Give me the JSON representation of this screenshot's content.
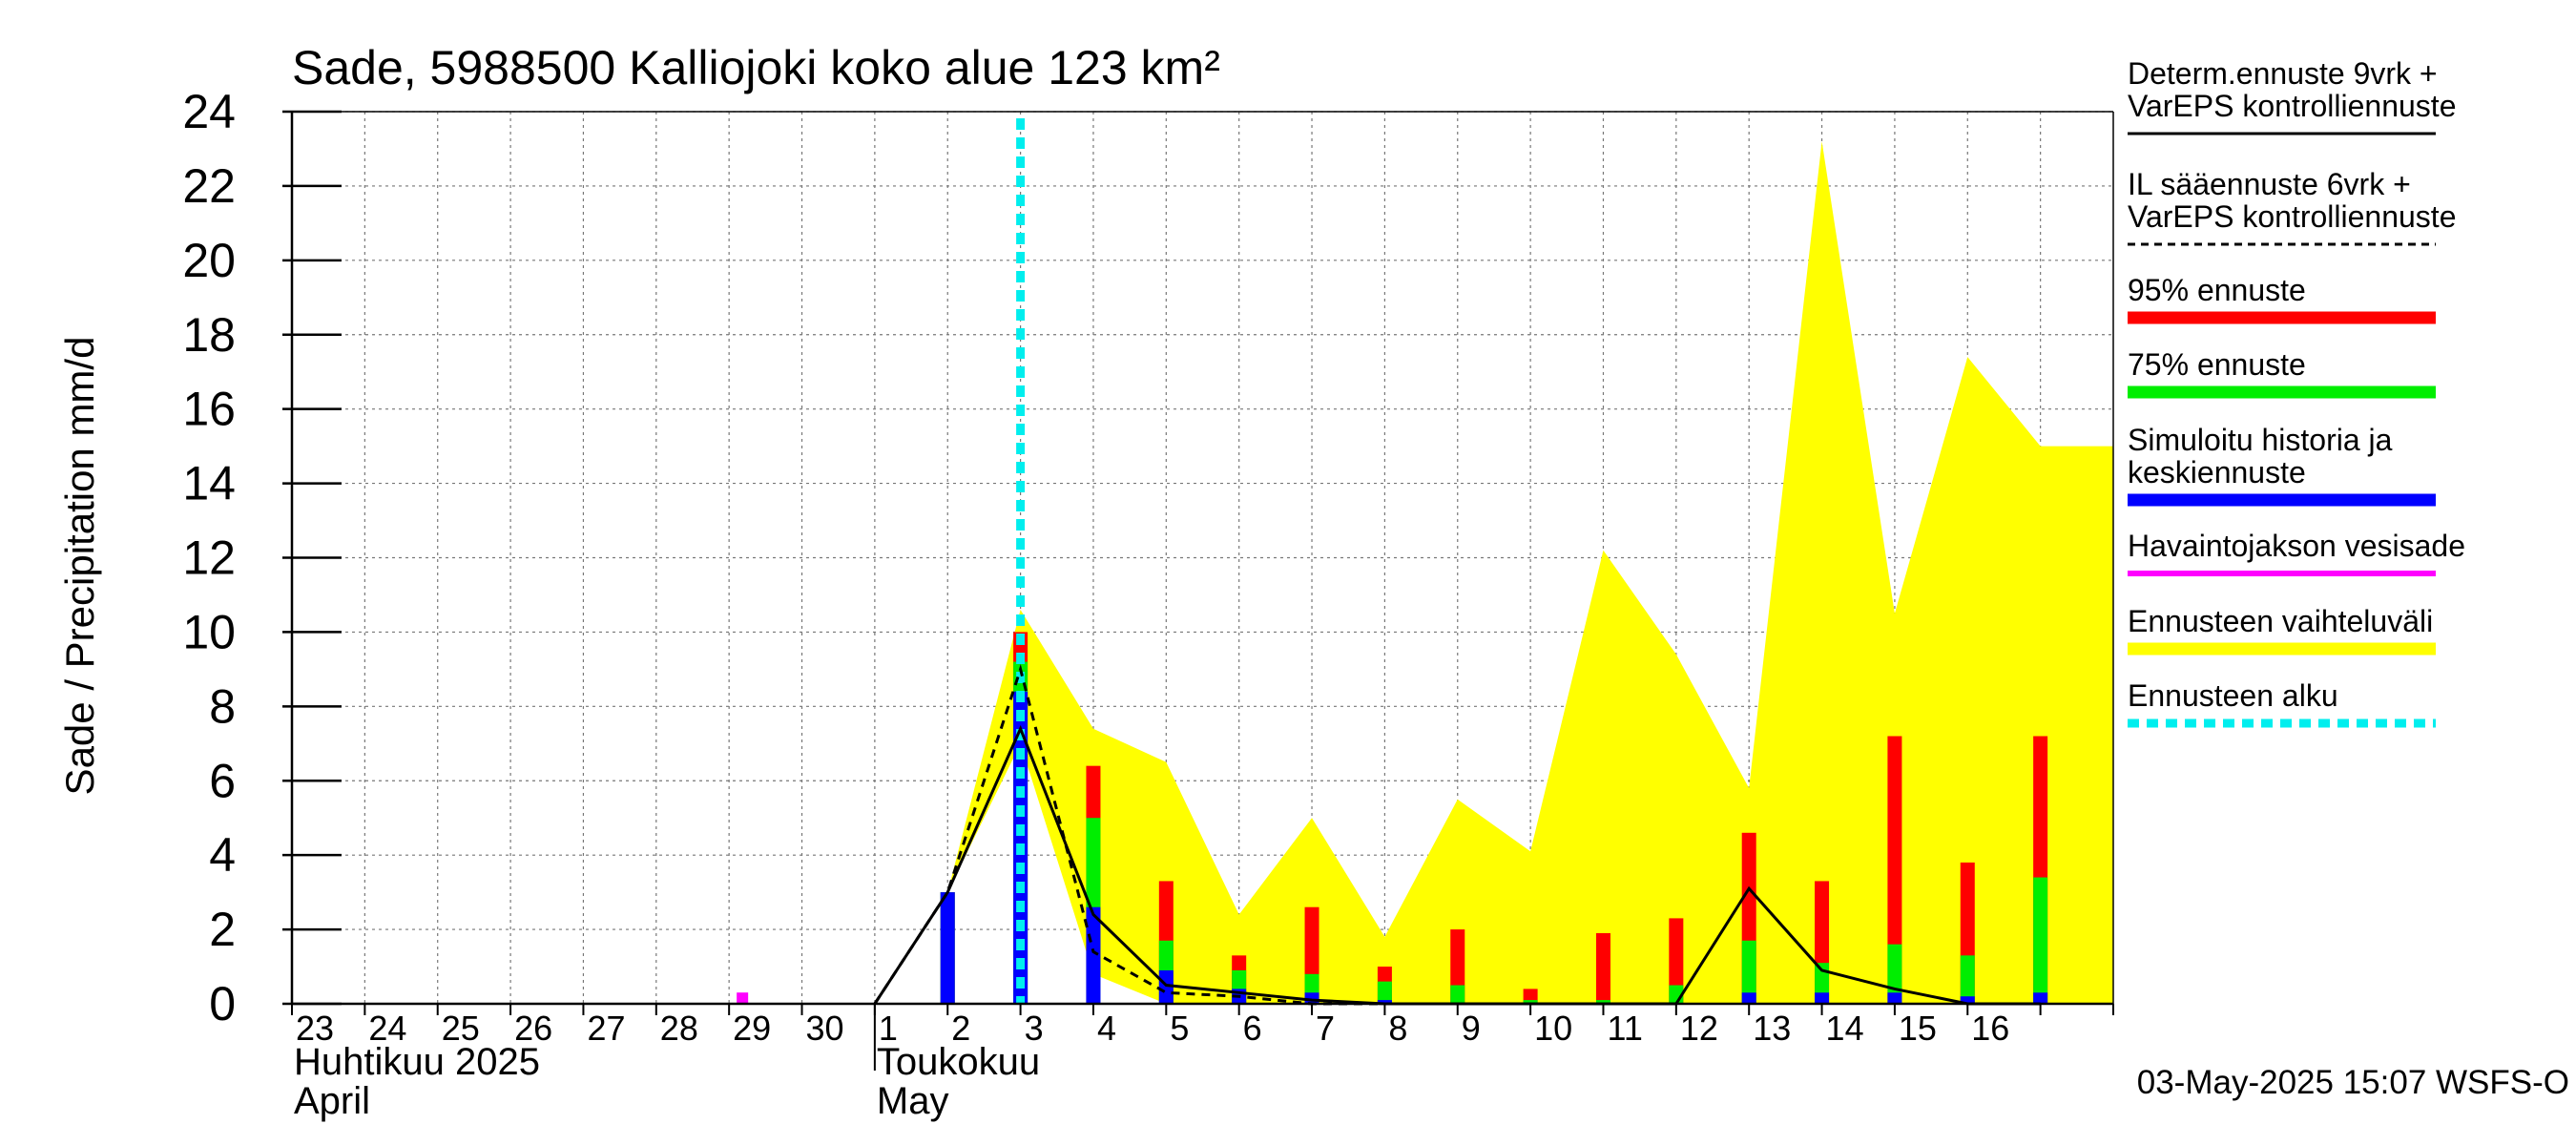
{
  "chart_data": {
    "type": "bar",
    "title": "Sade, 5988500 Kalliojoki koko alue 123 km²",
    "ylabel": "Sade / Precipitation   mm/d",
    "ylim": [
      0,
      24
    ],
    "yticks": [
      0,
      2,
      4,
      6,
      8,
      10,
      12,
      14,
      16,
      18,
      20,
      22,
      24
    ],
    "grid": true,
    "legend_position": "right",
    "x_days": 25,
    "day_labels": [
      "23",
      "24",
      "25",
      "26",
      "27",
      "28",
      "29",
      "30",
      "1",
      "2",
      "3",
      "4",
      "5",
      "6",
      "7",
      "8",
      "9",
      "10",
      "11",
      "12",
      "13",
      "14",
      "15",
      "16"
    ],
    "month_labels": [
      {
        "fi": "Huhtikuu  2025",
        "en": "April",
        "day_index": 0
      },
      {
        "fi": "Toukokuu",
        "en": "May",
        "day_index": 8
      }
    ],
    "forecast_start_day": 10,
    "envelope": {
      "name": "Ennusteen vaihteluväli",
      "x": [
        9,
        10,
        11,
        12,
        13,
        14,
        15,
        16,
        17,
        18,
        19,
        20,
        21,
        22,
        23,
        24,
        25
      ],
      "upper": [
        3.0,
        10.6,
        7.4,
        6.5,
        2.4,
        5.0,
        1.8,
        5.5,
        4.1,
        12.2,
        9.4,
        5.8,
        23.2,
        10.5,
        17.4,
        15.0,
        15.0
      ],
      "lower": [
        3.0,
        7.0,
        0.8,
        0.0,
        0.0,
        0.0,
        0.0,
        0.0,
        0.0,
        0.0,
        0.0,
        0.0,
        0.0,
        0.0,
        0.0,
        0.0,
        0.0
      ]
    },
    "bars": [
      {
        "day": 9,
        "p95": 3.0,
        "p75": 3.0,
        "median": 3.0
      },
      {
        "day": 10,
        "p95": 10.0,
        "p75": 9.2,
        "median": 8.4
      },
      {
        "day": 11,
        "p95": 6.4,
        "p75": 5.0,
        "median": 2.6
      },
      {
        "day": 12,
        "p95": 3.3,
        "p75": 1.7,
        "median": 0.9
      },
      {
        "day": 13,
        "p95": 1.3,
        "p75": 0.9,
        "median": 0.4
      },
      {
        "day": 14,
        "p95": 2.6,
        "p75": 0.8,
        "median": 0.3
      },
      {
        "day": 15,
        "p95": 1.0,
        "p75": 0.6,
        "median": 0.1
      },
      {
        "day": 16,
        "p95": 2.0,
        "p75": 0.5,
        "median": 0.0
      },
      {
        "day": 17,
        "p95": 0.4,
        "p75": 0.1,
        "median": 0.0
      },
      {
        "day": 18,
        "p95": 1.9,
        "p75": 0.1,
        "median": 0.0
      },
      {
        "day": 19,
        "p95": 2.3,
        "p75": 0.5,
        "median": 0.0
      },
      {
        "day": 20,
        "p95": 4.6,
        "p75": 1.7,
        "median": 0.3
      },
      {
        "day": 21,
        "p95": 3.3,
        "p75": 1.1,
        "median": 0.3
      },
      {
        "day": 22,
        "p95": 7.2,
        "p75": 1.6,
        "median": 0.3
      },
      {
        "day": 23,
        "p95": 3.8,
        "p75": 1.3,
        "median": 0.2
      },
      {
        "day": 24,
        "p95": 7.2,
        "p75": 3.4,
        "median": 0.3
      }
    ],
    "observed_bars": [
      {
        "day": 6,
        "value": 0.2
      }
    ],
    "determ_line": {
      "name": "Determ.ennuste 9vrk + VarEPS kontrolliennuste",
      "x": [
        8,
        9,
        10,
        11,
        12,
        13,
        14,
        15,
        16,
        17,
        18,
        19,
        20,
        21,
        22,
        23,
        24
      ],
      "y": [
        0,
        3.0,
        7.4,
        2.4,
        0.5,
        0.3,
        0.1,
        0.0,
        0.0,
        0.0,
        0.0,
        0.0,
        3.1,
        0.9,
        0.4,
        0.0,
        0.0
      ]
    },
    "il_line": {
      "name": "IL sääennuste 6vrk + VarEPS kontrolliennuste",
      "x": [
        8,
        9,
        10,
        11,
        12,
        13,
        14,
        15,
        16
      ],
      "y": [
        0,
        3.0,
        9.0,
        1.4,
        0.3,
        0.2,
        0.0,
        0.0,
        0.0
      ]
    },
    "legend": [
      {
        "label": "Determ.ennuste 9vrk +\nVarEPS kontrolliennuste",
        "style": "solid-thin",
        "color": "#000000"
      },
      {
        "label": "IL sääennuste 6vrk  +\n  VarEPS kontrolliennuste",
        "style": "dashed-thin",
        "color": "#000000"
      },
      {
        "label": "95% ennuste",
        "style": "thick",
        "color": "#ff0000"
      },
      {
        "label": "75% ennuste",
        "style": "thick",
        "color": "#00ee00"
      },
      {
        "label": "Simuloitu historia ja\nkeskiennuste",
        "style": "thick",
        "color": "#0000ff"
      },
      {
        "label": "Havaintojakson vesisade",
        "style": "medium",
        "color": "#ff00ff"
      },
      {
        "label": "Ennusteen vaihteluväli",
        "style": "thick",
        "color": "#ffff00"
      },
      {
        "label": "Ennusteen alku",
        "style": "dashed-thick",
        "color": "#00eeee"
      }
    ],
    "timestamp": "03-May-2025 15:07 WSFS-O",
    "colors": {
      "envelope": "#ffff00",
      "p95": "#ff0000",
      "p75": "#00ee00",
      "median": "#0000ff",
      "observed": "#ff00ff",
      "forecast_start": "#00eeee"
    }
  }
}
